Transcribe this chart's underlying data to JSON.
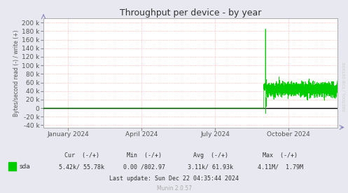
{
  "title": "Throughput per device - by year",
  "ylabel": "Bytes/second read (-) / write (+)",
  "bg_color": "#e8e8f0",
  "plot_bg_color": "#ffffff",
  "grid_color": "#ffaaaa",
  "line_color": "#00cc00",
  "zero_line_color": "#000000",
  "border_color": "#aaaaaa",
  "xtick_labels": [
    "January 2024",
    "April 2024",
    "July 2024",
    "October 2024"
  ],
  "ylim": [
    -45000,
    210000
  ],
  "yticks": [
    -40000,
    -20000,
    0,
    20000,
    40000,
    60000,
    80000,
    100000,
    120000,
    140000,
    160000,
    180000,
    200000
  ],
  "legend_label": "sda",
  "legend_color": "#00cc00",
  "cur_text": "Cur  (-/+)",
  "cur_val": "5.42k/ 55.78k",
  "min_text": "Min  (-/+)",
  "min_val": "0.00 /802.97",
  "avg_text": "Avg  (-/+)",
  "avg_val": "3.11k/ 61.93k",
  "max_text": "Max  (-/+)",
  "max_val": "4.11M/  1.79M",
  "last_update": "Last update: Sun Dec 22 04:35:44 2024",
  "munin_version": "Munin 2.0.57",
  "watermark": "RRDTOOL / TOBI OETIKER",
  "title_fontsize": 9,
  "axis_fontsize": 6.5,
  "figsize": [
    4.97,
    2.75
  ],
  "dpi": 100
}
